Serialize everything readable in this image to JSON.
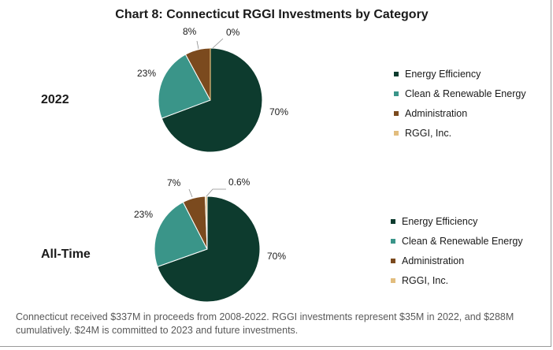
{
  "chart_data": {
    "title": "Chart 8: Connecticut RGGI Investments by Category",
    "type": "pie",
    "categories": [
      "Energy Efficiency",
      "Clean & Renewable Energy",
      "Administration",
      "RGGI, Inc."
    ],
    "colors": [
      "#0d3b2e",
      "#3a9589",
      "#7b4a1e",
      "#e2bd7e"
    ],
    "pies": [
      {
        "name": "2022",
        "values": [
          70,
          23,
          8,
          0
        ],
        "labels": [
          "70%",
          "23%",
          "8%",
          "0%"
        ]
      },
      {
        "name": "All-Time",
        "values": [
          70,
          23,
          7,
          0.6
        ],
        "labels": [
          "70%",
          "23%",
          "7%",
          "0.6%"
        ]
      }
    ],
    "legend_position": "right"
  },
  "caption": "Connecticut received $337M in proceeds from 2008-2022. RGGI investments represent $35M in 2022, and $288M cumulatively. $24M is committed to 2023 and future investments."
}
